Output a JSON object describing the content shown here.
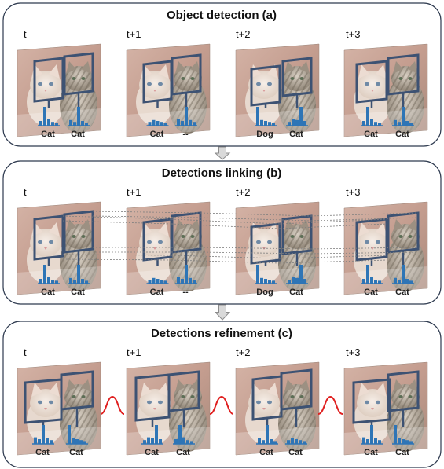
{
  "panels": [
    {
      "key": "a",
      "title": "Object detection (a)",
      "frames": [
        {
          "time": "t",
          "labels": [
            "Cat",
            "Cat"
          ]
        },
        {
          "time": "t+1",
          "labels": [
            "Cat",
            "--"
          ]
        },
        {
          "time": "t+2",
          "labels": [
            "Dog",
            "Cat"
          ]
        },
        {
          "time": "t+3",
          "labels": [
            "Cat",
            "Cat"
          ]
        }
      ]
    },
    {
      "key": "b",
      "title": "Detections linking (b)",
      "frames": [
        {
          "time": "t",
          "labels": [
            "Cat",
            "Cat"
          ]
        },
        {
          "time": "t+1",
          "labels": [
            "Cat",
            "--"
          ]
        },
        {
          "time": "t+2",
          "labels": [
            "Dog",
            "Cat"
          ]
        },
        {
          "time": "t+3",
          "labels": [
            "Cat",
            "Cat"
          ]
        }
      ]
    },
    {
      "key": "c",
      "title": "Detections refinement (c)",
      "frames": [
        {
          "time": "t",
          "labels": [
            "Cat",
            "Cat"
          ]
        },
        {
          "time": "t+1",
          "labels": [
            "Cat",
            "Cat"
          ]
        },
        {
          "time": "t+2",
          "labels": [
            "Cat",
            "Cat"
          ]
        },
        {
          "time": "t+3",
          "labels": [
            "Cat",
            "Cat"
          ]
        }
      ]
    }
  ],
  "colors": {
    "panel_border": "#2e3a4f",
    "box": "#3d5273",
    "histogram": "#2e75b6",
    "link_line": "#7f7f7f",
    "smooth_curve": "#e02020",
    "arrow_fill": "#d9d9d9",
    "arrow_stroke": "#8c8c8c",
    "frame_bg": "#c9a79a",
    "kitten_fur": "#e9dcd2",
    "tabby_fur": "#b8ab9b"
  }
}
